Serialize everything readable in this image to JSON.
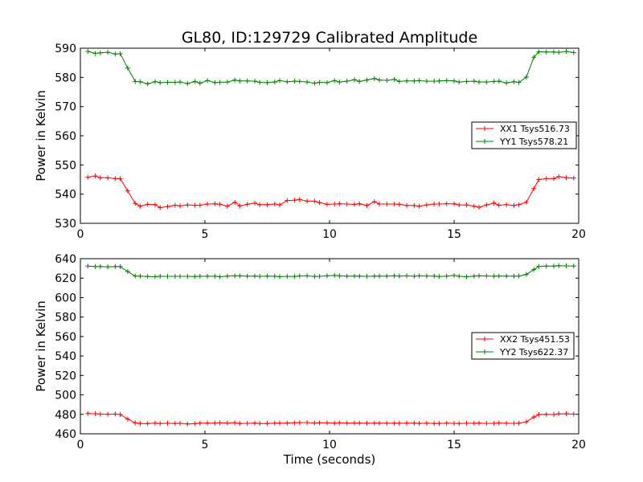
{
  "title": "GL80, ID:129729 Calibrated Amplitude",
  "xlabel": "Time (seconds)",
  "colors": {
    "XX": "#ff0000",
    "YY": "#008000"
  },
  "chart_data": [
    {
      "type": "line",
      "ylabel": "Power in Kelvin",
      "xlim": [
        0,
        20
      ],
      "ylim": [
        530,
        590
      ],
      "xticks": [
        0,
        5,
        10,
        15,
        20
      ],
      "yticks": [
        530,
        540,
        550,
        560,
        570,
        580,
        590
      ],
      "legend_position": "center-right",
      "series": [
        {
          "name": "XX1 Tsys516.73",
          "color": "#ff0000",
          "x": [
            0.3,
            0.6,
            0.8,
            1.1,
            1.4,
            1.6,
            1.9,
            2.2,
            2.4,
            2.7,
            3.0,
            3.2,
            3.5,
            3.8,
            4.0,
            4.3,
            4.6,
            4.8,
            5.1,
            5.4,
            5.6,
            5.9,
            6.2,
            6.4,
            6.7,
            7.0,
            7.2,
            7.5,
            7.8,
            8.0,
            8.3,
            8.6,
            8.8,
            9.1,
            9.4,
            9.6,
            9.9,
            10.2,
            10.4,
            10.7,
            11.0,
            11.2,
            11.5,
            11.8,
            12.0,
            12.3,
            12.6,
            12.8,
            13.1,
            13.4,
            13.6,
            13.9,
            14.2,
            14.4,
            14.7,
            15.0,
            15.2,
            15.5,
            15.8,
            16.0,
            16.3,
            16.6,
            16.8,
            17.1,
            17.4,
            17.6,
            17.9,
            18.2,
            18.4,
            18.7,
            19.0,
            19.2,
            19.5,
            19.8
          ],
          "y": [
            545.8,
            546.2,
            545.6,
            545.6,
            545.3,
            545.3,
            541.1,
            536.8,
            535.9,
            536.5,
            536.4,
            535.4,
            535.7,
            536.2,
            536.0,
            536.3,
            536.2,
            536.2,
            536.6,
            536.7,
            536.5,
            535.9,
            537.2,
            536.0,
            536.5,
            536.9,
            536.4,
            536.4,
            536.6,
            536.3,
            537.8,
            537.9,
            538.2,
            537.6,
            537.6,
            537.1,
            536.5,
            536.6,
            536.7,
            536.6,
            536.5,
            536.7,
            536.1,
            537.4,
            536.6,
            536.6,
            536.6,
            536.5,
            536.1,
            536.1,
            535.9,
            536.3,
            536.6,
            536.6,
            536.7,
            536.7,
            536.3,
            536.3,
            535.9,
            535.5,
            536.3,
            536.9,
            536.2,
            536.4,
            536.1,
            536.4,
            537.2,
            541.9,
            545.0,
            545.3,
            545.3,
            546.0,
            545.6,
            545.5
          ]
        },
        {
          "name": "YY1 Tsys578.21",
          "color": "#008000",
          "x": [
            0.3,
            0.6,
            0.8,
            1.1,
            1.4,
            1.6,
            1.9,
            2.2,
            2.4,
            2.7,
            3.0,
            3.2,
            3.5,
            3.8,
            4.0,
            4.3,
            4.6,
            4.8,
            5.1,
            5.4,
            5.6,
            5.9,
            6.2,
            6.4,
            6.7,
            7.0,
            7.2,
            7.5,
            7.8,
            8.0,
            8.3,
            8.6,
            8.8,
            9.1,
            9.4,
            9.6,
            9.9,
            10.2,
            10.4,
            10.7,
            11.0,
            11.2,
            11.5,
            11.8,
            12.0,
            12.3,
            12.6,
            12.8,
            13.1,
            13.4,
            13.6,
            13.9,
            14.2,
            14.4,
            14.7,
            15.0,
            15.2,
            15.5,
            15.8,
            16.0,
            16.3,
            16.6,
            16.8,
            17.1,
            17.4,
            17.6,
            17.9,
            18.2,
            18.4,
            18.7,
            19.0,
            19.2,
            19.5,
            19.8
          ],
          "y": [
            588.9,
            588.2,
            588.4,
            588.6,
            588.0,
            588.1,
            583.2,
            578.6,
            578.5,
            577.8,
            578.5,
            578.2,
            578.3,
            578.3,
            578.4,
            577.9,
            578.6,
            578.0,
            578.9,
            578.2,
            578.3,
            578.4,
            579.1,
            578.8,
            578.8,
            578.7,
            578.3,
            578.2,
            578.4,
            578.9,
            578.5,
            578.7,
            578.6,
            578.4,
            578.0,
            578.3,
            578.2,
            578.9,
            578.4,
            578.7,
            579.2,
            578.6,
            579.1,
            579.6,
            579.1,
            579.0,
            579.3,
            578.6,
            578.8,
            578.8,
            578.9,
            578.7,
            578.7,
            578.8,
            578.9,
            578.8,
            578.4,
            578.6,
            578.7,
            578.4,
            578.4,
            578.6,
            578.7,
            578.1,
            578.5,
            578.3,
            580.1,
            586.9,
            588.8,
            588.7,
            588.7,
            588.6,
            588.9,
            588.5
          ]
        }
      ]
    },
    {
      "type": "line",
      "ylabel": "Power in Kelvin",
      "xlim": [
        0,
        20
      ],
      "ylim": [
        460,
        640
      ],
      "xticks": [
        0,
        5,
        10,
        15,
        20
      ],
      "yticks": [
        460,
        480,
        500,
        520,
        540,
        560,
        580,
        600,
        620,
        640
      ],
      "legend_position": "center-right",
      "series": [
        {
          "name": "XX2 Tsys451.53",
          "color": "#ff0000",
          "x": [
            0.3,
            0.6,
            0.8,
            1.1,
            1.4,
            1.6,
            1.9,
            2.2,
            2.4,
            2.7,
            3.0,
            3.2,
            3.5,
            3.8,
            4.0,
            4.3,
            4.6,
            4.8,
            5.1,
            5.4,
            5.6,
            5.9,
            6.2,
            6.4,
            6.7,
            7.0,
            7.2,
            7.5,
            7.8,
            8.0,
            8.3,
            8.6,
            8.8,
            9.1,
            9.4,
            9.6,
            9.9,
            10.2,
            10.4,
            10.7,
            11.0,
            11.2,
            11.5,
            11.8,
            12.0,
            12.3,
            12.6,
            12.8,
            13.1,
            13.4,
            13.6,
            13.9,
            14.2,
            14.4,
            14.7,
            15.0,
            15.2,
            15.5,
            15.8,
            16.0,
            16.3,
            16.6,
            16.8,
            17.1,
            17.4,
            17.6,
            17.9,
            18.2,
            18.4,
            18.7,
            19.0,
            19.2,
            19.5,
            19.8
          ],
          "y": [
            480.8,
            480.6,
            480.2,
            480.1,
            480.3,
            479.8,
            475.2,
            471.2,
            470.6,
            470.5,
            470.9,
            470.5,
            470.8,
            470.6,
            470.7,
            470.1,
            470.4,
            470.9,
            471.0,
            471.0,
            471.2,
            471.1,
            471.2,
            470.5,
            470.7,
            471.0,
            470.6,
            470.5,
            470.9,
            471.0,
            471.0,
            471.3,
            471.5,
            471.6,
            471.1,
            471.4,
            471.2,
            470.9,
            471.2,
            471.0,
            471.1,
            471.0,
            470.9,
            471.0,
            470.9,
            470.9,
            470.9,
            470.8,
            470.9,
            471.0,
            470.6,
            470.9,
            470.6,
            470.6,
            470.9,
            470.7,
            470.6,
            470.8,
            470.8,
            470.9,
            470.7,
            470.7,
            471.1,
            470.8,
            470.7,
            470.9,
            472.2,
            477.2,
            479.9,
            480.0,
            479.8,
            480.5,
            480.6,
            480.2
          ]
        },
        {
          "name": "YY2 Tsys622.37",
          "color": "#008000",
          "x": [
            0.3,
            0.6,
            0.8,
            1.1,
            1.4,
            1.6,
            1.9,
            2.2,
            2.4,
            2.7,
            3.0,
            3.2,
            3.5,
            3.8,
            4.0,
            4.3,
            4.6,
            4.8,
            5.1,
            5.4,
            5.6,
            5.9,
            6.2,
            6.4,
            6.7,
            7.0,
            7.2,
            7.5,
            7.8,
            8.0,
            8.3,
            8.6,
            8.8,
            9.1,
            9.4,
            9.6,
            9.9,
            10.2,
            10.4,
            10.7,
            11.0,
            11.2,
            11.5,
            11.8,
            12.0,
            12.3,
            12.6,
            12.8,
            13.1,
            13.4,
            13.6,
            13.9,
            14.2,
            14.4,
            14.7,
            15.0,
            15.2,
            15.5,
            15.8,
            16.0,
            16.3,
            16.6,
            16.8,
            17.1,
            17.4,
            17.6,
            17.9,
            18.2,
            18.4,
            18.7,
            19.0,
            19.2,
            19.5,
            19.8
          ],
          "y": [
            632.4,
            632.0,
            632.0,
            631.6,
            631.9,
            631.8,
            626.8,
            622.1,
            622.0,
            621.7,
            621.4,
            621.9,
            621.8,
            621.8,
            621.8,
            621.8,
            621.6,
            621.9,
            621.9,
            621.9,
            621.4,
            622.1,
            622.3,
            622.3,
            622.0,
            622.1,
            621.8,
            622.0,
            621.9,
            621.5,
            621.8,
            621.7,
            622.2,
            622.3,
            621.7,
            621.8,
            622.3,
            622.8,
            622.3,
            622.0,
            622.1,
            622.0,
            621.8,
            622.0,
            622.1,
            622.1,
            622.4,
            622.1,
            622.3,
            621.9,
            622.3,
            622.2,
            622.1,
            621.7,
            622.0,
            622.8,
            621.9,
            621.4,
            622.0,
            622.3,
            622.2,
            622.0,
            622.2,
            622.1,
            622.0,
            622.1,
            623.8,
            628.8,
            632.1,
            632.4,
            632.4,
            632.8,
            632.6,
            632.5
          ]
        }
      ]
    }
  ]
}
